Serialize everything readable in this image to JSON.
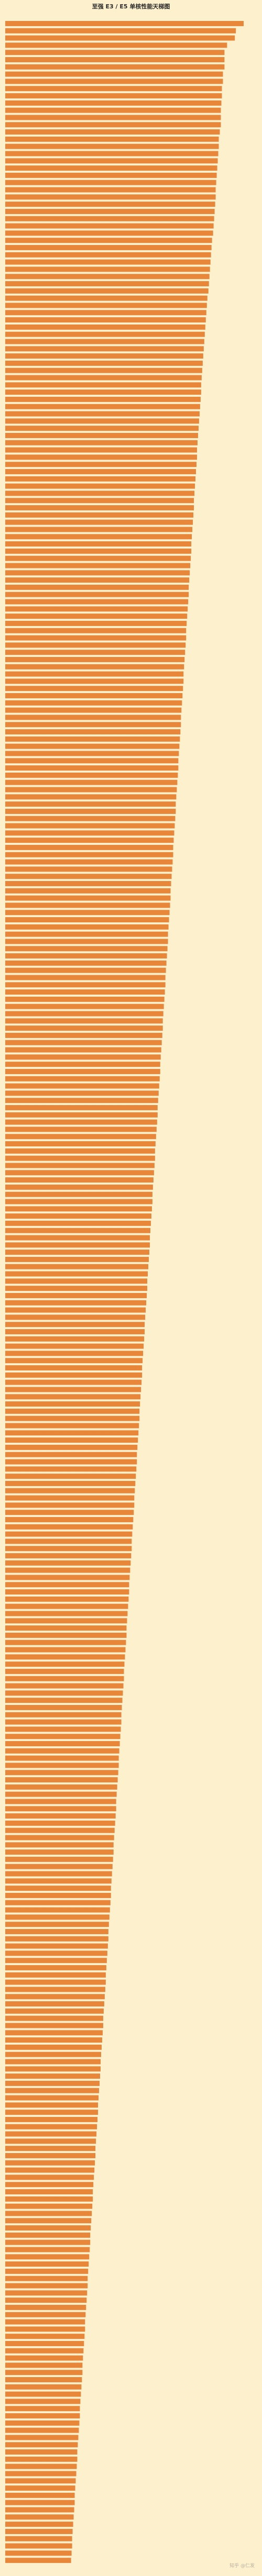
{
  "chart_data": {
    "type": "bar",
    "orientation": "horizontal",
    "title": "至强 E3 / E5 单核性能天梯图",
    "bar_color": "#e8863a",
    "background_color": "#fdf1cd",
    "grid": false,
    "bar_labels_legible": false,
    "values": [
      460,
      445,
      443,
      428,
      423,
      423,
      423,
      420,
      420,
      418,
      418,
      417,
      416,
      416,
      416,
      414,
      412,
      412,
      411,
      410,
      409,
      408,
      407,
      406,
      406,
      405,
      404,
      403,
      402,
      401,
      399,
      398,
      397,
      396,
      395,
      394,
      393,
      392,
      390,
      389,
      388,
      387,
      386,
      385,
      384,
      383,
      382,
      381,
      380,
      379,
      378,
      378,
      377,
      376,
      375,
      374,
      373,
      372,
      371,
      370,
      370,
      369,
      368,
      367,
      366,
      365,
      364,
      364,
      363,
      362,
      361,
      360,
      359,
      359,
      358,
      357,
      356,
      355,
      354,
      354,
      353,
      352,
      351,
      350,
      349,
      349,
      348,
      347,
      346,
      345,
      344,
      344,
      343,
      342,
      341,
      340,
      339,
      339,
      338,
      337,
      336,
      335,
      334,
      334,
      333,
      332,
      331,
      330,
      329,
      329,
      328,
      327,
      326,
      325,
      324,
      324,
      323,
      322,
      321,
      320,
      319,
      319,
      318,
      317,
      316,
      315,
      314,
      314,
      313,
      312,
      311,
      310,
      309,
      309,
      308,
      307,
      306,
      305,
      304,
      304,
      303,
      302,
      301,
      300,
      299,
      299,
      298,
      297,
      296,
      295,
      294,
      294,
      293,
      292,
      291,
      290,
      289,
      289,
      288,
      287,
      286,
      285,
      284,
      284,
      283,
      282,
      281,
      280,
      279,
      279,
      278,
      277,
      276,
      275,
      274,
      274,
      273,
      272,
      271,
      270,
      269,
      269,
      268,
      267,
      266,
      265,
      264,
      264,
      263,
      262,
      261,
      260,
      259,
      259,
      258,
      257,
      256,
      255,
      254,
      254,
      253,
      252,
      251,
      250,
      249,
      249,
      248,
      247,
      246,
      245,
      244,
      244,
      243,
      242,
      241,
      240,
      239,
      239,
      238,
      237,
      236,
      235,
      234,
      234,
      233,
      232,
      231,
      230,
      229,
      229,
      228,
      227,
      226,
      225,
      224,
      224,
      223,
      222,
      221,
      220,
      219,
      219,
      218,
      217,
      216,
      215,
      214,
      214,
      213,
      212,
      211,
      210,
      209,
      209,
      208,
      207,
      206,
      205,
      204,
      204,
      203,
      202,
      201,
      200,
      199,
      199,
      198,
      197,
      196,
      195,
      194,
      194,
      193,
      192,
      191,
      190,
      189,
      189,
      188,
      187,
      186,
      185,
      184,
      184,
      183,
      182,
      181,
      180,
      179,
      179,
      178,
      177,
      176,
      175,
      174,
      174,
      173,
      172,
      171,
      170,
      169,
      169,
      168,
      167,
      166,
      165,
      164,
      164,
      163,
      162,
      161,
      160,
      159,
      159,
      158,
      157,
      156,
      155,
      154,
      154,
      153,
      152,
      151,
      150,
      149,
      149,
      148,
      147,
      146,
      145,
      144,
      144,
      143,
      142,
      141,
      140,
      139,
      139,
      138,
      137,
      136,
      135,
      134,
      134,
      133,
      132,
      131,
      130,
      129,
      129,
      128,
      127
    ]
  },
  "watermark": "知乎 @仁发"
}
